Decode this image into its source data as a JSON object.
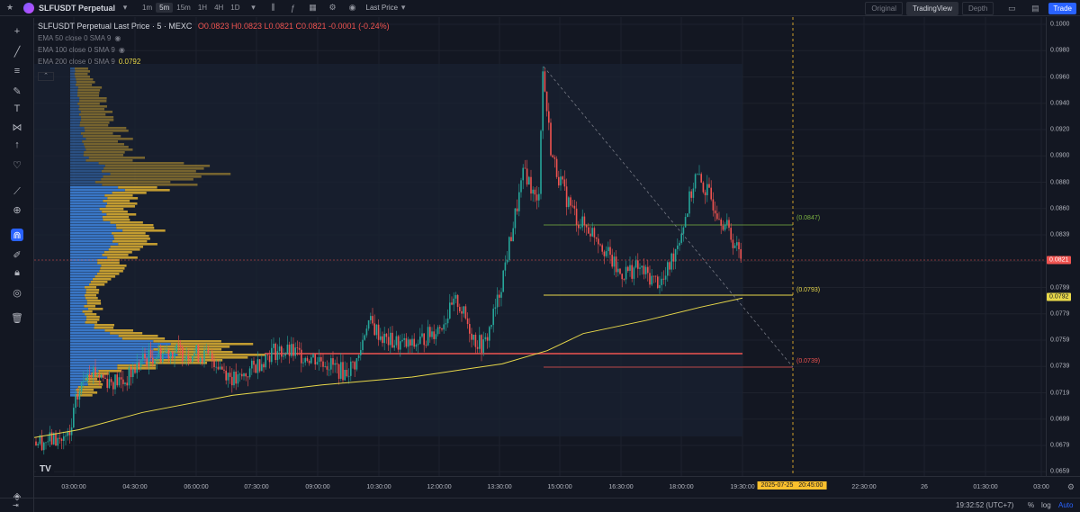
{
  "topbar": {
    "symbol": "SLFUSDT Perpetual",
    "intervals": [
      "1m",
      "5m",
      "15m",
      "1H",
      "4H",
      "1D"
    ],
    "active_interval": "5m",
    "price_type": "Last Price",
    "view_tabs": [
      "Original",
      "TradingView",
      "Depth"
    ],
    "active_view": "TradingView",
    "trade_label": "Trade"
  },
  "legend": {
    "main_title": "SLFUSDT Perpetual Last Price · 5 · MEXC",
    "ohlc": "O0.0823 H0.0823 L0.0821 C0.0821 -0.0001 (-0.24%)",
    "ema50": "EMA 50 close 0 SMA 9",
    "ema100": "EMA 100 close 0 SMA 9",
    "ema200": "EMA 200 close 0 SMA 9",
    "ema200_value": "0.0792"
  },
  "price_axis": {
    "labels": [
      "0.1000",
      "0.0980",
      "0.0960",
      "0.0940",
      "0.0920",
      "0.0900",
      "0.0880",
      "0.0860",
      "0.0839",
      "0.0819",
      "0.0799",
      "0.0779",
      "0.0759",
      "0.0739",
      "0.0719",
      "0.0699",
      "0.0679",
      "0.0659"
    ],
    "current_price": "0.0821",
    "ema_price": "0.0792"
  },
  "annotations": {
    "top": "(0.0847)",
    "mid": "(0.0793)",
    "low": "(0.0739)"
  },
  "time_axis": {
    "labels": [
      "03:00:00",
      "04:30:00",
      "06:00:00",
      "07:30:00",
      "09:00:00",
      "10:30:00",
      "12:00:00",
      "13:30:00",
      "15:00:00",
      "16:30:00",
      "18:00:00",
      "19:30:00",
      "22:30:00",
      "26",
      "01:30:00",
      "03:00"
    ],
    "cursor_date": "2025-07-25",
    "cursor_time": "20:45:00"
  },
  "bottombar": {
    "clock": "19:32:52 (UTC+7)",
    "percent": "%",
    "log": "log",
    "auto": "Auto"
  },
  "colors": {
    "background": "#131722",
    "up": "#26a69a",
    "down": "#ef5350",
    "ema": "#e8d84a",
    "accent": "#2962ff",
    "vp_blue": "#3d7fd6",
    "vp_gold": "#d4a832"
  }
}
